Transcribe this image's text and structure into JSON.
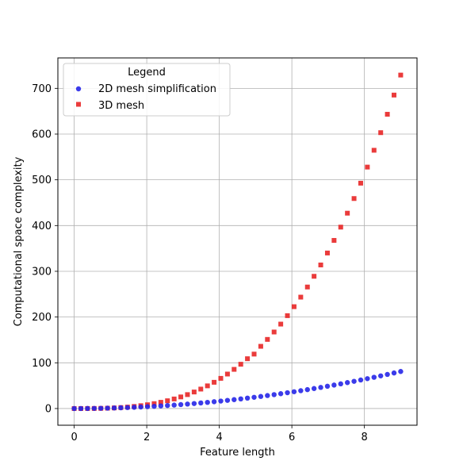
{
  "chart_data": {
    "type": "scatter",
    "xlabel": "Feature length",
    "ylabel": "Computational space complexity",
    "xlim": [
      -0.45,
      9.45
    ],
    "ylim": [
      -36.5,
      766.5
    ],
    "xticks": [
      0,
      2,
      4,
      6,
      8
    ],
    "yticks": [
      0,
      100,
      200,
      300,
      400,
      500,
      600,
      700
    ],
    "grid": true,
    "legend": {
      "title": "Legend",
      "placement": "top-left"
    },
    "x": [
      0.0,
      0.1837,
      0.3673,
      0.551,
      0.7347,
      0.9184,
      1.102,
      1.2857,
      1.4694,
      1.6531,
      1.8367,
      2.0204,
      2.2041,
      2.3878,
      2.5714,
      2.7551,
      2.9388,
      3.1224,
      3.3061,
      3.4898,
      3.6735,
      3.8571,
      4.0408,
      4.2245,
      4.4082,
      4.5918,
      4.7755,
      4.9592,
      5.1429,
      5.3265,
      5.5102,
      5.6939,
      5.8776,
      6.0612,
      6.2449,
      6.4286,
      6.6122,
      6.7959,
      6.9796,
      7.1633,
      7.3469,
      7.5306,
      7.7143,
      7.898,
      8.0816,
      8.2653,
      8.449,
      8.6327,
      8.8163,
      9.0
    ],
    "series": [
      {
        "name": "2D mesh simplification",
        "color": "#2626e8",
        "marker": "circle",
        "values": [
          0.0,
          0.03,
          0.13,
          0.3,
          0.54,
          0.84,
          1.21,
          1.65,
          2.16,
          2.73,
          3.37,
          4.08,
          4.86,
          5.7,
          6.61,
          7.59,
          8.64,
          9.75,
          10.93,
          12.18,
          13.49,
          14.88,
          16.33,
          17.85,
          19.43,
          21.08,
          22.81,
          24.59,
          26.45,
          28.37,
          30.36,
          32.42,
          34.55,
          36.74,
          39.0,
          41.33,
          43.72,
          46.18,
          48.72,
          51.31,
          53.98,
          56.71,
          59.51,
          62.38,
          65.31,
          68.31,
          71.39,
          74.52,
          77.73,
          81.0
        ]
      },
      {
        "name": "3D mesh",
        "color": "#e82626",
        "marker": "square",
        "values": [
          0.0,
          0.01,
          0.05,
          0.17,
          0.4,
          0.77,
          1.34,
          2.13,
          3.17,
          4.52,
          6.2,
          8.25,
          10.71,
          13.61,
          17.0,
          20.91,
          25.38,
          30.44,
          36.14,
          42.5,
          49.57,
          57.38,
          65.98,
          75.39,
          85.66,
          96.82,
          108.91,
          119.0,
          136.02,
          151.12,
          167.3,
          184.58,
          203.05,
          222.68,
          243.54,
          265.68,
          289.1,
          313.87,
          340.01,
          367.56,
          396.57,
          427.07,
          459.09,
          492.65,
          527.82,
          564.62,
          603.1,
          643.31,
          685.3,
          729.0
        ]
      }
    ]
  }
}
